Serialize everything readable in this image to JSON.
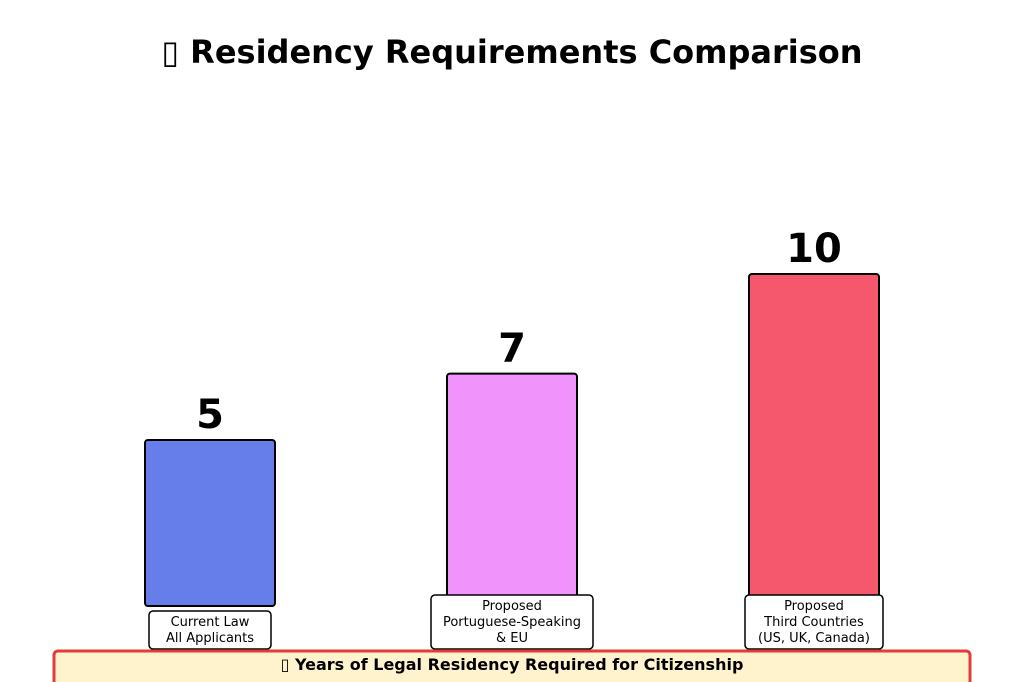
{
  "chart_data": {
    "type": "bar",
    "title": "▯ Residency Requirements Comparison",
    "footer": "▯ Years of Legal Residency Required for Citizenship",
    "categories": [
      [
        "Current Law",
        "All Applicants"
      ],
      [
        "Proposed",
        "Portuguese-Speaking",
        "& EU"
      ],
      [
        "Proposed",
        "Third Countries",
        "(US, UK, Canada)"
      ]
    ],
    "values": [
      5,
      7,
      10
    ],
    "value_labels": [
      "5",
      "7",
      "10"
    ],
    "colors": [
      "#667eea",
      "#f093fb",
      "#f5576c"
    ],
    "ylim": [
      0,
      10
    ],
    "grid": false,
    "legend": "none"
  }
}
